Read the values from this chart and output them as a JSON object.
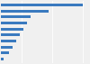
{
  "values": [
    16800,
    9800,
    6200,
    5300,
    4600,
    3800,
    3100,
    2400,
    1600,
    500
  ],
  "bar_color": "#3a7abf",
  "background_color": "#f0f0f0",
  "plot_bg": "#f0f0f0",
  "bar_height": 0.45
}
